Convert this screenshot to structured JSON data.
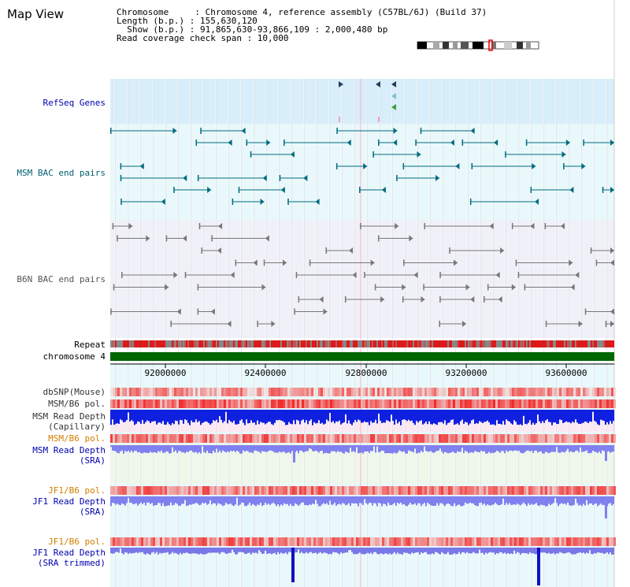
{
  "page": {
    "title": "Map View",
    "info_lines": [
      "Chromosome     : Chromosome 4, reference assembly (C57BL/6J) (Build 37)",
      "Length (b.p.) : 155,630,120",
      "Show (b.p.) : 91,865,630-93,866,109 : 2,000,480 bp",
      "Read coverage check span : 10,000"
    ]
  },
  "tracks": {
    "refseq": "RefSeq Genes",
    "msm_bac": "MSM BAC end pairs",
    "b6n_bac": "B6N BAC end pairs",
    "repeat": "Repeat",
    "chromosome": "chromosome 4",
    "dbsnp": "dbSNP(Mouse)",
    "msm_pol": "MSM/B6 pol.",
    "msm_depth_cap_1": "MSM Read Depth",
    "msm_depth_cap_2": "(Capillary)",
    "msm_pol2": "MSM/B6 pol.",
    "msm_depth_sra_1": "MSM Read Depth",
    "msm_depth_sra_2": "(SRA)",
    "jf1_pol": "JF1/B6 pol.",
    "jf1_depth_1": "JF1 Read Depth",
    "jf1_depth_2": "(SRA)",
    "jf1_pol2": "JF1/B6 pol.",
    "jf1_trim_1": "JF1 Read Depth",
    "jf1_trim_2": "(SRA trimmed)"
  },
  "axis": {
    "ticks": [
      "92000000",
      "92400000",
      "92800000",
      "93200000",
      "93600000"
    ]
  },
  "colors": {
    "refseq_bg": "#d8eefa",
    "bac_bg": "#e9f8fa",
    "b6n_bg": "#f0f0f8",
    "chromosome": "#006600",
    "depth_blue": "#1020e0",
    "depth_sra": "#8080ef",
    "pol_red": "#e02020",
    "msm_teal": "#006b80",
    "b6n_gray": "#777777"
  }
}
